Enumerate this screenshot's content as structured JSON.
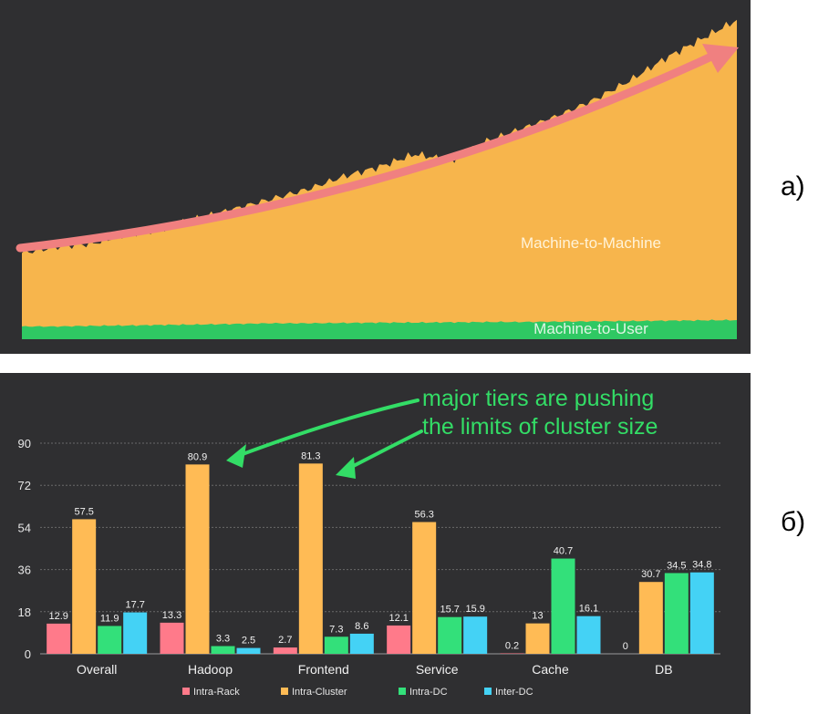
{
  "panel_a": {
    "label": "а)",
    "series": [
      {
        "name": "Machine-to-Machine",
        "color": "#f7b54c"
      },
      {
        "name": "Machine-to-User",
        "color": "#2fc863"
      }
    ],
    "trend_arrow_color": "#f08080"
  },
  "panel_b": {
    "label": "б)",
    "annotation": {
      "lines": [
        "major tiers are pushing",
        "the limits of cluster size"
      ],
      "color": "#33dd66"
    }
  },
  "chart_data": [
    {
      "type": "area",
      "title": "",
      "xlabel": "",
      "ylabel": "",
      "series": [
        {
          "name": "Machine-to-Machine",
          "x": [
            0,
            1,
            2,
            3,
            4,
            5,
            6,
            7,
            8,
            9,
            10,
            11,
            12,
            13,
            14,
            15,
            16,
            17,
            18,
            19,
            20
          ],
          "values": [
            27,
            29,
            30,
            33,
            35,
            38,
            41,
            44,
            47,
            51,
            54,
            58,
            56,
            62,
            66,
            70,
            75,
            81,
            88,
            94,
            100
          ]
        },
        {
          "name": "Machine-to-User",
          "x": [
            0,
            1,
            2,
            3,
            4,
            5,
            6,
            7,
            8,
            9,
            10,
            11,
            12,
            13,
            14,
            15,
            16,
            17,
            18,
            19,
            20
          ],
          "values": [
            4,
            4,
            4.2,
            4.3,
            4.5,
            4.6,
            4.8,
            5,
            5,
            5.1,
            5.2,
            5.2,
            5.3,
            5.4,
            5.4,
            5.5,
            5.6,
            5.7,
            5.8,
            5.9,
            6
          ]
        }
      ],
      "ylim": [
        0,
        100
      ],
      "grid": false,
      "legend": "inline labels"
    },
    {
      "type": "bar",
      "title": "",
      "xlabel": "",
      "ylabel": "",
      "categories": [
        "Overall",
        "Hadoop",
        "Frontend",
        "Service",
        "Cache",
        "DB"
      ],
      "series": [
        {
          "name": "Intra-Rack",
          "color": "#ff7a8a",
          "values": [
            12.9,
            13.3,
            2.7,
            12.1,
            0.2,
            0
          ]
        },
        {
          "name": "Intra-Cluster",
          "color": "#ffbb55",
          "values": [
            57.5,
            80.9,
            81.3,
            56.3,
            13,
            30.7
          ]
        },
        {
          "name": "Intra-DC",
          "color": "#33e07a",
          "values": [
            11.9,
            3.3,
            7.3,
            15.7,
            40.7,
            34.5
          ]
        },
        {
          "name": "Inter-DC",
          "color": "#44d2f5",
          "values": [
            17.7,
            2.5,
            8.6,
            15.9,
            16.1,
            34.8
          ]
        }
      ],
      "ylim": [
        0,
        90
      ],
      "yticks": [
        "0",
        "18",
        "36",
        "54",
        "72",
        "90"
      ],
      "grid": true,
      "legend": "bottom"
    }
  ]
}
